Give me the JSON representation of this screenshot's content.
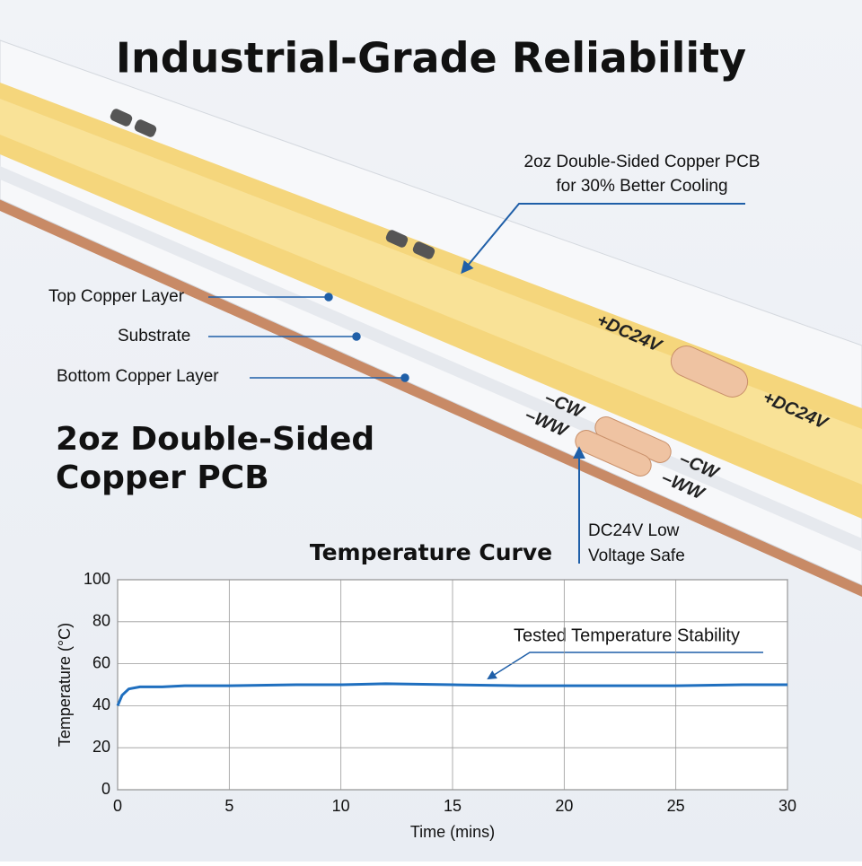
{
  "title": "Industrial-Grade Reliability",
  "cooling_note": [
    "2oz Double-Sided Copper PCB",
    "for 30% Better Cooling"
  ],
  "layers": [
    "Top Copper Layer",
    "Substrate",
    "Bottom Copper Layer"
  ],
  "heading": [
    "2oz Double-Sided",
    "Copper PCB"
  ],
  "voltage_note": [
    "DC24V Low",
    "Voltage Safe"
  ],
  "strip_labels": [
    "+DC24V",
    "+DC24V",
    "–CW",
    "–WW",
    "–CW",
    "–WW"
  ],
  "chart_data": {
    "type": "line",
    "title": "Temperature Curve",
    "x_label": "Time (mins)",
    "y_label": "Temperature (°C)",
    "annotation": "Tested Temperature Stability",
    "x": [
      0,
      0.2,
      0.5,
      1,
      2,
      3,
      5,
      8,
      10,
      12,
      15,
      18,
      20,
      22,
      25,
      28,
      30
    ],
    "values": [
      40,
      45,
      48,
      49,
      49,
      49.5,
      49.5,
      50,
      50,
      50.5,
      50,
      49.5,
      49.5,
      49.5,
      49.5,
      50,
      50
    ],
    "color": "#1f6fbf",
    "xlim": [
      0,
      30
    ],
    "xticks": [
      0,
      5,
      10,
      15,
      20,
      25,
      30
    ],
    "ylim": [
      0,
      100
    ],
    "yticks": [
      0,
      20,
      40,
      60,
      80,
      100
    ],
    "grid": true
  }
}
